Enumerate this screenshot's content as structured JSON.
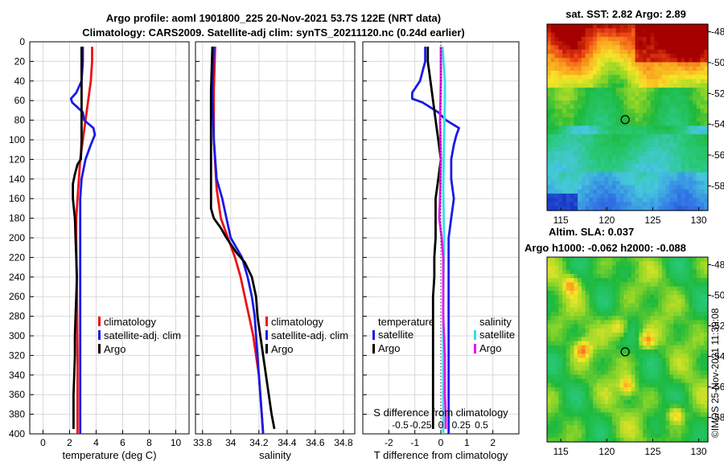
{
  "title": {
    "line1": "Argo profile: aoml 1901800_225 20-Nov-2021 53.7S 122E (NRT data)",
    "line2": "Climatology: CARS2009. Satellite-adj clim: synTS_20211120.nc (0.24d earlier)"
  },
  "footer": "©IMOS 25-Nov-2021 11:39:08",
  "colors": {
    "climatology": "#ee1111",
    "satellite": "#1a1ae6",
    "argo": "#000000",
    "sal_satellite": "#33e0e6",
    "sal_argo": "#ee11ee",
    "grid": "#d9d9d9"
  },
  "depth_ticks": [
    0,
    20,
    40,
    60,
    80,
    100,
    120,
    140,
    160,
    180,
    200,
    220,
    240,
    260,
    280,
    300,
    320,
    340,
    360,
    380,
    400
  ],
  "legend": {
    "climatology": "climatology",
    "satellite_adj": "satellite-adj. clim",
    "argo": "Argo",
    "temperature": "temperature",
    "salinity": "salinity",
    "satellite": "satellite"
  },
  "chart_data": [
    {
      "type": "line",
      "id": "temperature",
      "xlabel": "temperature (deg C)",
      "ylabel": "depth",
      "xlim": [
        -1,
        11
      ],
      "ylim": [
        400,
        0
      ],
      "xticks": [
        0,
        2,
        4,
        6,
        8,
        10
      ],
      "xtick_labels": [
        "0",
        "2",
        "4",
        "6",
        "8",
        "10"
      ],
      "series": [
        {
          "name": "climatology",
          "color_key": "climatology",
          "depth": [
            5,
            20,
            40,
            60,
            80,
            100,
            120,
            140,
            160,
            180,
            200,
            260,
            320,
            400
          ],
          "values": [
            3.7,
            3.7,
            3.6,
            3.4,
            3.2,
            3.0,
            2.8,
            2.7,
            2.6,
            2.5,
            2.5,
            2.55,
            2.6,
            2.6
          ]
        },
        {
          "name": "satellite-adj. clim",
          "color_key": "satellite",
          "depth": [
            5,
            20,
            40,
            52,
            58,
            62,
            67,
            72,
            80,
            88,
            95,
            105,
            120,
            140,
            160,
            180,
            200,
            260,
            320,
            400
          ],
          "values": [
            3.0,
            3.0,
            2.9,
            2.5,
            2.1,
            2.2,
            2.6,
            3.0,
            3.1,
            3.8,
            3.9,
            3.6,
            3.2,
            2.9,
            2.8,
            2.8,
            2.8,
            2.8,
            2.8,
            2.8
          ]
        },
        {
          "name": "Argo",
          "color_key": "argo",
          "depth": [
            5,
            20,
            40,
            60,
            80,
            100,
            120,
            125,
            135,
            145,
            160,
            180,
            200,
            220,
            240,
            260,
            280,
            300,
            320,
            340,
            360,
            380,
            395
          ],
          "values": [
            2.9,
            2.9,
            2.9,
            2.9,
            2.9,
            2.9,
            2.85,
            2.6,
            2.4,
            2.25,
            2.25,
            2.4,
            2.45,
            2.5,
            2.55,
            2.5,
            2.45,
            2.4,
            2.4,
            2.35,
            2.3,
            2.3,
            2.3
          ]
        }
      ],
      "legend": [
        "climatology",
        "satellite-adj. clim",
        "Argo"
      ]
    },
    {
      "type": "line",
      "id": "salinity",
      "xlabel": "salinity",
      "ylabel": "depth",
      "xlim": [
        33.75,
        34.88
      ],
      "ylim": [
        400,
        0
      ],
      "xticks": [
        33.8,
        34,
        34.2,
        34.4,
        34.6,
        34.8
      ],
      "xtick_labels": [
        "33.8",
        "34",
        "34.2",
        "34.4",
        "34.6",
        "34.8"
      ],
      "series": [
        {
          "name": "climatology",
          "color_key": "climatology",
          "depth": [
            5,
            50,
            100,
            150,
            180,
            200,
            220,
            240,
            260,
            280,
            300,
            320,
            340,
            360,
            380,
            400
          ],
          "values": [
            33.89,
            33.88,
            33.88,
            33.9,
            33.93,
            33.98,
            34.03,
            34.07,
            34.1,
            34.13,
            34.16,
            34.18,
            34.2,
            34.21,
            34.22,
            34.23
          ]
        },
        {
          "name": "satellite-adj. clim",
          "color_key": "satellite",
          "depth": [
            5,
            50,
            100,
            140,
            160,
            180,
            200,
            220,
            240,
            260,
            280,
            300,
            320,
            340,
            360,
            380,
            400
          ],
          "values": [
            33.88,
            33.87,
            33.88,
            33.9,
            33.94,
            33.97,
            34.0,
            34.08,
            34.12,
            34.15,
            34.17,
            34.18,
            34.19,
            34.2,
            34.21,
            34.22,
            34.23
          ]
        },
        {
          "name": "Argo",
          "color_key": "argo",
          "depth": [
            5,
            50,
            100,
            150,
            170,
            180,
            190,
            200,
            215,
            225,
            240,
            260,
            280,
            300,
            320,
            340,
            360,
            380,
            395
          ],
          "values": [
            33.87,
            33.86,
            33.86,
            33.86,
            33.86,
            33.88,
            33.93,
            33.97,
            34.04,
            34.1,
            34.15,
            34.18,
            34.19,
            34.21,
            34.23,
            34.25,
            34.27,
            34.29,
            34.31
          ]
        }
      ],
      "legend": [
        "climatology",
        "satellite-adj. clim",
        "Argo"
      ]
    },
    {
      "type": "line",
      "id": "difference",
      "xlabel": "T difference from climatology",
      "xlabel_top": "S difference from climatology",
      "xlim": [
        -3,
        3
      ],
      "ylim": [
        400,
        0
      ],
      "xticks": [
        -2,
        -1,
        0,
        1,
        2
      ],
      "xtick_labels": [
        "-2",
        "-1",
        "0",
        "1",
        "2"
      ],
      "s_ticks": [
        -0.5,
        -0.25,
        0,
        0.25,
        0.5
      ],
      "s_tick_labels": [
        "-0.5",
        "-0.25",
        "0",
        "0.25",
        "0.5"
      ],
      "series": [
        {
          "name": "temperature satellite",
          "color_key": "satellite",
          "depth": [
            5,
            20,
            40,
            52,
            58,
            62,
            67,
            72,
            80,
            88,
            95,
            105,
            120,
            140,
            160,
            180,
            200,
            260,
            320,
            400
          ],
          "values": [
            -0.6,
            -0.6,
            -0.8,
            -1.1,
            -1.1,
            -0.7,
            -0.4,
            -0.1,
            0.2,
            0.7,
            0.6,
            0.5,
            0.4,
            0.4,
            0.5,
            0.4,
            0.3,
            0.3,
            0.3,
            0.3
          ]
        },
        {
          "name": "temperature Argo",
          "color_key": "argo",
          "depth": [
            5,
            20,
            40,
            60,
            80,
            100,
            120,
            140,
            160,
            180,
            200,
            220,
            240,
            260,
            280,
            300,
            320,
            340,
            360,
            380,
            395
          ],
          "values": [
            -0.5,
            -0.5,
            -0.4,
            -0.3,
            -0.2,
            -0.1,
            0.0,
            -0.1,
            -0.2,
            -0.2,
            -0.2,
            -0.25,
            -0.25,
            -0.3,
            -0.3,
            -0.3,
            -0.3,
            -0.3,
            -0.3,
            -0.3,
            -0.3
          ]
        },
        {
          "name": "salinity satellite",
          "color_key": "sal_satellite",
          "depth": [
            5,
            40,
            60,
            100,
            150,
            200,
            260,
            320,
            400
          ],
          "values": [
            0.02,
            0.05,
            0.05,
            0.04,
            0.03,
            0.04,
            0.03,
            0.03,
            0.03
          ]
        },
        {
          "name": "salinity Argo",
          "color_key": "sal_argo",
          "depth": [
            5,
            40,
            80,
            120,
            160,
            180,
            200,
            220,
            240,
            260,
            280,
            300,
            320,
            340,
            360,
            380,
            395
          ],
          "values": [
            0.0,
            0.0,
            -0.01,
            0.0,
            -0.01,
            -0.02,
            0.01,
            0.03,
            0.03,
            0.03,
            0.03,
            0.04,
            0.05,
            0.05,
            0.05,
            0.06,
            0.06
          ]
        }
      ],
      "legend_temperature": [
        "temperature",
        "satellite",
        "Argo"
      ],
      "legend_salinity": [
        "salinity",
        "satellite",
        "Argo"
      ]
    },
    {
      "type": "heatmap",
      "id": "sst_map",
      "title": "sat. SST: 2.82 Argo: 2.89",
      "xlim": [
        113.5,
        131
      ],
      "ylim": [
        -59.6,
        -47.5
      ],
      "xticks": [
        115,
        120,
        125,
        130
      ],
      "xtick_labels": [
        "115",
        "120",
        "125",
        "130"
      ],
      "yticks": [
        -48,
        -50,
        -52,
        -54,
        -56,
        -58
      ],
      "ytick_labels": [
        "-48",
        "-50",
        "-52",
        "-54",
        "-56",
        "-58"
      ],
      "marker": {
        "lon": 122,
        "lat": -53.7
      }
    },
    {
      "type": "heatmap",
      "id": "sla_map",
      "title_line1": "Altim. SLA: 0.037",
      "title_line2": "Argo h1000: -0.062 h2000: -0.088",
      "xlim": [
        113.5,
        131
      ],
      "ylim": [
        -59.6,
        -47.5
      ],
      "xticks": [
        115,
        120,
        125,
        130
      ],
      "xtick_labels": [
        "115",
        "120",
        "125",
        "130"
      ],
      "yticks": [
        -48,
        -50,
        -52,
        -54,
        -56,
        -58
      ],
      "ytick_labels": [
        "-48",
        "-50",
        "-52",
        "-54",
        "-56",
        "-58"
      ],
      "marker": {
        "lon": 122,
        "lat": -53.7
      }
    }
  ]
}
